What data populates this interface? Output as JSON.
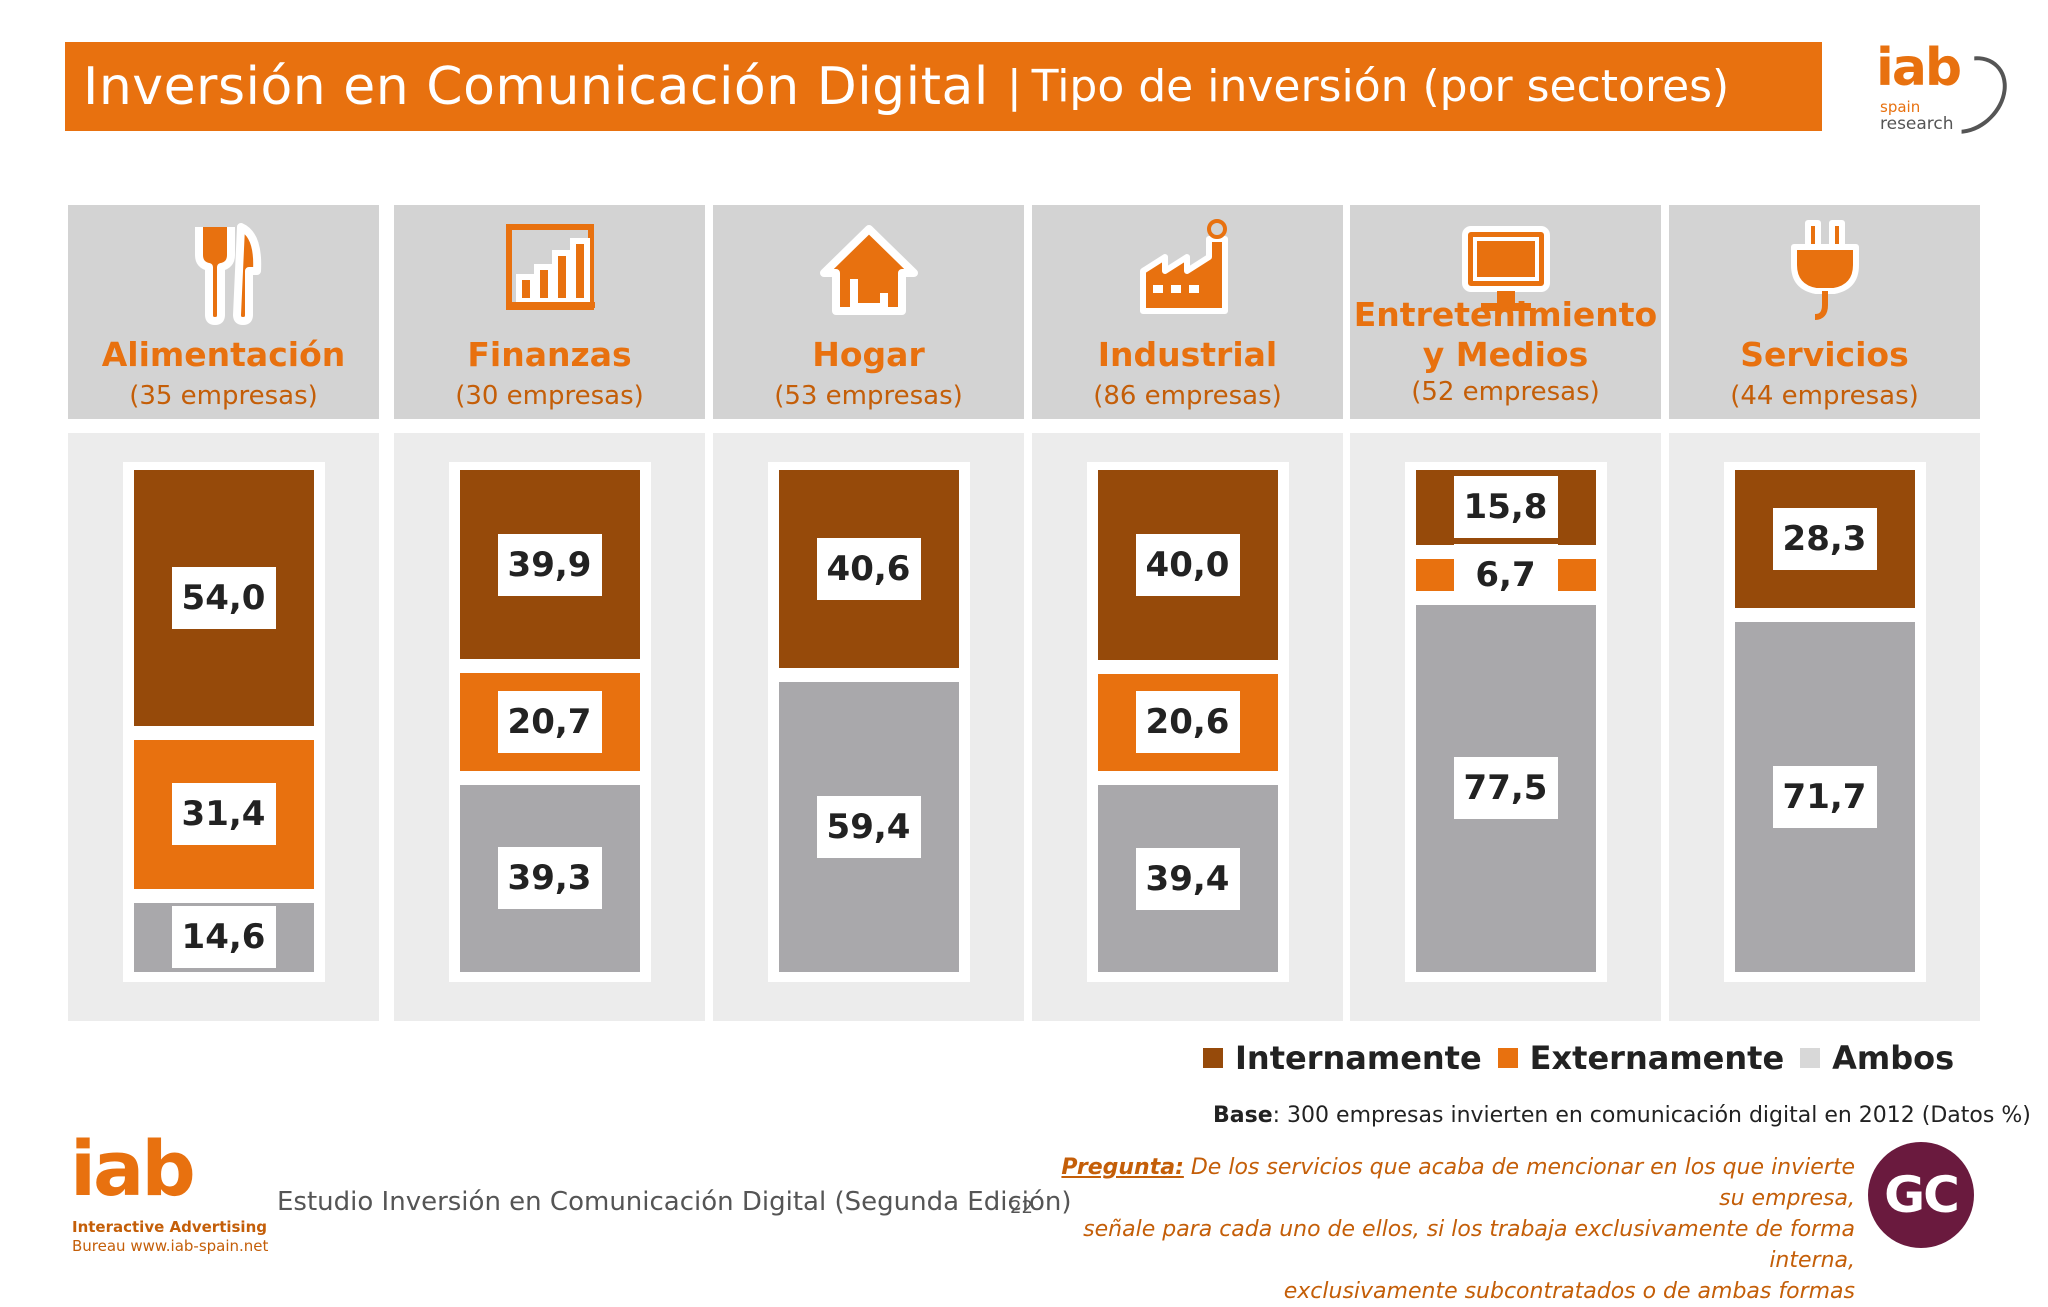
{
  "title": {
    "main": "Inversión en Comunicación Digital",
    "separator": "|",
    "sub": "Tipo de inversión (por sectores)"
  },
  "logo_top": {
    "word": "iab",
    "line1": "spain",
    "line2": "research"
  },
  "colors": {
    "internamente": "#964a0a",
    "externamente": "#e8710f",
    "ambos": "#a9a8ab",
    "accent": "#e8710f"
  },
  "chart_data": {
    "type": "bar",
    "stacked": true,
    "categories": [
      "Alimentación",
      "Finanzas",
      "Hogar",
      "Industrial",
      "Entretenimiento y Medios",
      "Servicios"
    ],
    "category_counts": [
      "(35 empresas)",
      "(30 empresas)",
      "(53 empresas)",
      "(86 empresas)",
      "(52 empresas)",
      "(44 empresas)"
    ],
    "series": [
      {
        "name": "Internamente",
        "values": [
          54.0,
          39.9,
          40.6,
          40.0,
          15.8,
          28.3
        ],
        "labels": [
          "54,0",
          "39,9",
          "40,6",
          "40,0",
          "15,8",
          "28,3"
        ]
      },
      {
        "name": "Externamente",
        "values": [
          31.4,
          20.7,
          0,
          20.6,
          6.7,
          0
        ],
        "labels": [
          "31,4",
          "20,7",
          "",
          "20,6",
          "6,7",
          ""
        ]
      },
      {
        "name": "Ambos",
        "values": [
          14.6,
          39.3,
          59.4,
          39.4,
          77.5,
          71.7
        ],
        "labels": [
          "14,6",
          "39,3",
          "59,4",
          "39,4",
          "77,5",
          "71,7"
        ]
      }
    ],
    "ylim": [
      0,
      100
    ],
    "legend_position": "bottom-right"
  },
  "header_names": [
    "Alimentación",
    "Finanzas",
    "Hogar",
    "Industrial",
    "Entretenimiento",
    "Servicios"
  ],
  "header_name2": [
    "",
    "",
    "",
    "",
    "y Medios",
    ""
  ],
  "icons": [
    "fork-knife-icon",
    "bar-chart-icon",
    "house-icon",
    "factory-icon",
    "monitor-icon",
    "plug-icon"
  ],
  "legend": {
    "a": "Internamente",
    "b": "Externamente",
    "c": "Ambos"
  },
  "base": {
    "label": "Base",
    "text": ": 300 empresas invierten en comunicación digital en 2012 (Datos %)"
  },
  "pregunta": {
    "label": "Pregunta:",
    "line1": " De los servicios que acaba de mencionar en los que invierte su empresa,",
    "line2": "señale para cada uno de ellos, si los trabaja exclusivamente de forma interna,",
    "line3": "exclusivamente subcontratados o de ambas formas"
  },
  "logo_bottom": {
    "word": "iab",
    "line1": "Interactive Advertising",
    "line2": "Bureau www.iab-spain.net"
  },
  "footer": {
    "study": "Estudio Inversión en Comunicación Digital (Segunda Edición)",
    "page": "22"
  },
  "gc_badge": "GC"
}
